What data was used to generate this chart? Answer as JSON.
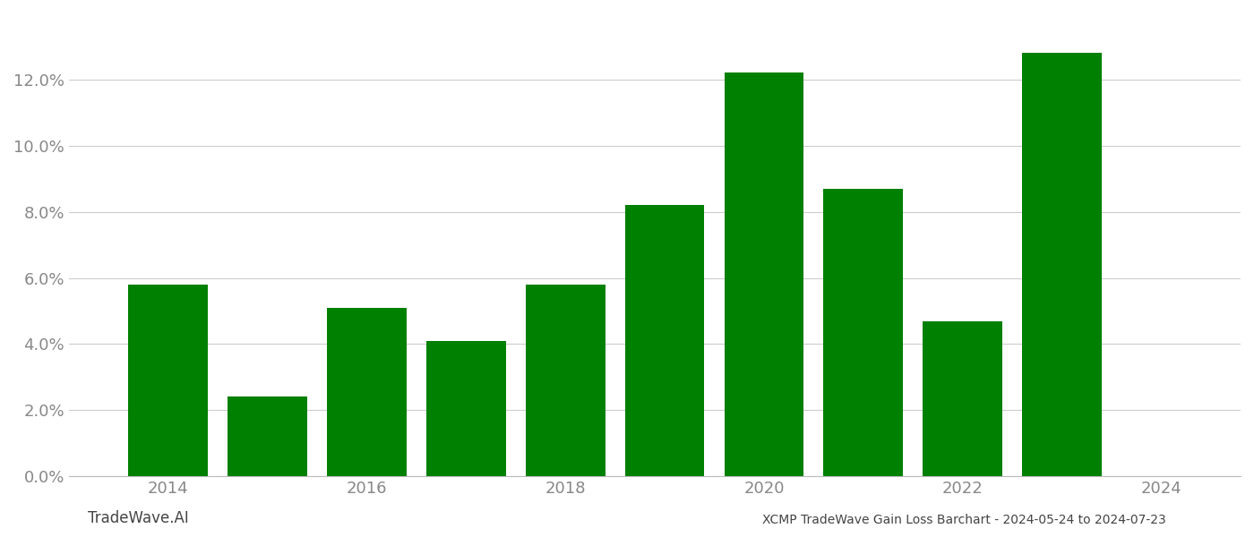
{
  "years": [
    2014,
    2015,
    2016,
    2017,
    2018,
    2019,
    2020,
    2021,
    2022,
    2023
  ],
  "values": [
    0.058,
    0.024,
    0.051,
    0.041,
    0.058,
    0.082,
    0.122,
    0.087,
    0.047,
    0.128
  ],
  "bar_color": "#008000",
  "title": "XCMP TradeWave Gain Loss Barchart - 2024-05-24 to 2024-07-23",
  "watermark": "TradeWave.AI",
  "ylim": [
    0,
    0.14
  ],
  "yticks": [
    0.0,
    0.02,
    0.04,
    0.06,
    0.08,
    0.1,
    0.12
  ],
  "background_color": "#ffffff",
  "grid_color": "#cccccc",
  "tick_label_color": "#888888",
  "title_color": "#444444",
  "watermark_color": "#444444",
  "bar_width": 0.8,
  "xtick_labels": [
    "2014",
    "2016",
    "2018",
    "2020",
    "2022",
    "2024"
  ],
  "xtick_positions": [
    2014,
    2016,
    2018,
    2020,
    2022,
    2024
  ]
}
